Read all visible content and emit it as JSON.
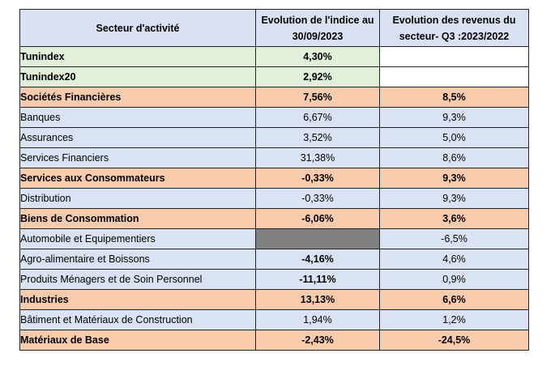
{
  "header": {
    "col1": "Secteur d'activité",
    "col2": "Evolution  de l'indice au 30/09/2023",
    "col3": "Evolution  des revenus du secteur- Q3 :2023/2022"
  },
  "rows": [
    {
      "label": "Tunindex",
      "index": "4,30%",
      "revenue": ""
    },
    {
      "label": "Tunindex20",
      "index": "2,92%",
      "revenue": ""
    },
    {
      "label": "Sociétés Financières",
      "index": "7,56%",
      "revenue": "8,5%"
    },
    {
      "label": "Banques",
      "index": "6,67%",
      "revenue": "9,3%"
    },
    {
      "label": "Assurances",
      "index": "3,52%",
      "revenue": "5,0%"
    },
    {
      "label": "Services Financiers",
      "index": "31,38%",
      "revenue": "8,6%"
    },
    {
      "label": "Services aux Consommateurs",
      "index": "-0,33%",
      "revenue": "9,3%"
    },
    {
      "label": "Distribution",
      "index": "-0,33%",
      "revenue": "9,3%"
    },
    {
      "label": "Biens de Consommation",
      "index": "-6,06%",
      "revenue": "3,6%"
    },
    {
      "label": "Automobile et Equipementiers",
      "index": "",
      "revenue": "-6,5%"
    },
    {
      "label": "Agro-alimentaire et Boissons",
      "index": "-4,16%",
      "revenue": "4,6%"
    },
    {
      "label": "Produits Ménagers et de Soin Personnel",
      "index": "-11,11%",
      "revenue": "0,9%"
    },
    {
      "label": "Industries",
      "index": "13,13%",
      "revenue": "6,6%"
    },
    {
      "label": "Bâtiment et Matériaux de Construction",
      "index": "1,94%",
      "revenue": "1,2%"
    },
    {
      "label": "Matériaux de Base",
      "index": "-2,43%",
      "revenue": "-24,5%"
    }
  ],
  "colors": {
    "header_bg": "#d9e1f2",
    "index_bg": "#e2efd9",
    "sector_bg": "#f8cbad",
    "subsector_bg": "#dae3f3",
    "positive": "#00a651",
    "negative": "#e00000",
    "no_data": "#808080"
  }
}
